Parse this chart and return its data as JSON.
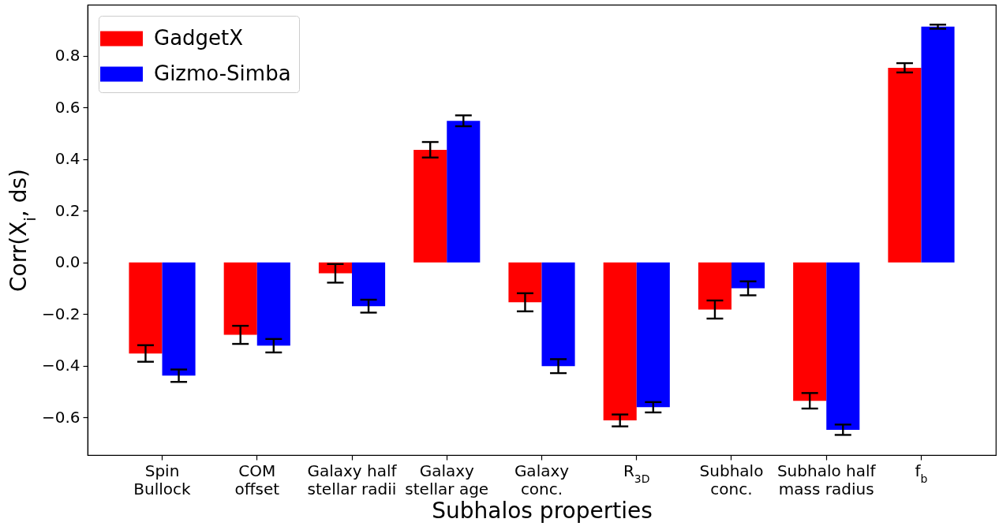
{
  "chart_data": {
    "type": "bar",
    "xlabel": "Subhalos properties",
    "ylabel": "Corr(X$_{i}$, ds)",
    "categories": [
      "Spin\nBullock",
      "COM\noffset",
      "Galaxy half\nstellar radii",
      "Galaxy\nstellar age",
      "Galaxy\nconc.",
      "R$_{3D}$",
      "Subhalo\nconc.",
      "Subhalo half\nmass radius",
      "f$_{b}$"
    ],
    "series": [
      {
        "name": "GadgetX",
        "color": "#ff0000",
        "values": [
          -0.352,
          -0.28,
          -0.042,
          0.436,
          -0.154,
          -0.611,
          -0.182,
          -0.535,
          0.753
        ],
        "errors": [
          0.032,
          0.035,
          0.036,
          0.03,
          0.035,
          0.023,
          0.035,
          0.03,
          0.018
        ]
      },
      {
        "name": "Gizmo-Simba",
        "color": "#0000ff",
        "values": [
          -0.438,
          -0.322,
          -0.169,
          0.548,
          -0.401,
          -0.56,
          -0.1,
          -0.647,
          0.912
        ],
        "errors": [
          0.024,
          0.026,
          0.025,
          0.021,
          0.027,
          0.02,
          0.027,
          0.02,
          0.008
        ]
      }
    ],
    "ylim": [
      -0.745,
      0.997
    ],
    "yticks": [
      {
        "value": -0.6,
        "label": "−0.6"
      },
      {
        "value": -0.4,
        "label": "−0.4"
      },
      {
        "value": -0.2,
        "label": "−0.2"
      },
      {
        "value": 0,
        "label": "0.0"
      },
      {
        "value": 0.2,
        "label": "0.2"
      },
      {
        "value": 0.4,
        "label": "0.4"
      },
      {
        "value": 0.6,
        "label": "0.6"
      },
      {
        "value": 0.8,
        "label": "0.8"
      }
    ],
    "legend": "top left"
  }
}
